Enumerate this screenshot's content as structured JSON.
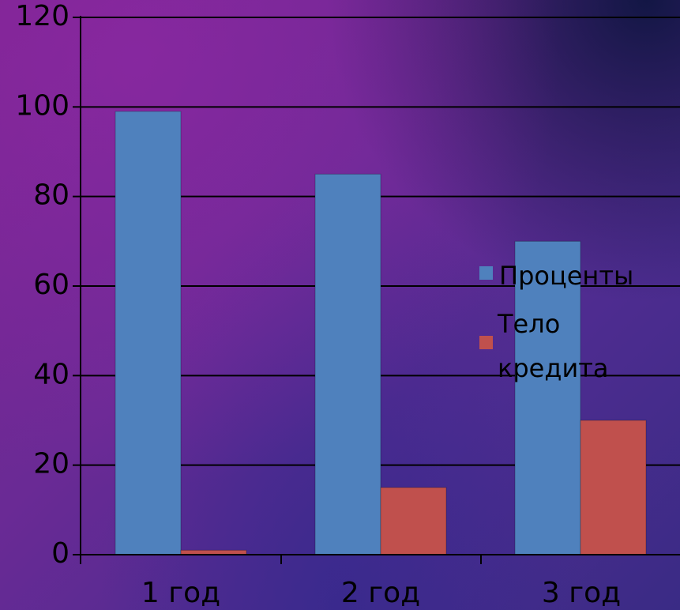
{
  "chart_data": {
    "type": "bar",
    "categories": [
      "1 год",
      "2 год",
      "3 год"
    ],
    "series": [
      {
        "name": "Проценты",
        "values": [
          99,
          85,
          70
        ],
        "color": "#4f81bd"
      },
      {
        "name": "Тело кредита",
        "values": [
          1,
          15,
          30
        ],
        "color": "#c0504d"
      }
    ],
    "y_ticks": [
      "0",
      "20",
      "40",
      "60",
      "80",
      "100",
      "120"
    ],
    "ylim": [
      0,
      120
    ],
    "grid": true,
    "legend_position": "right",
    "legend": [
      {
        "lines": [
          "Проценты"
        ],
        "color": "#4f81bd"
      },
      {
        "lines": [
          "Тело",
          "кредита"
        ],
        "color": "#c0504d"
      }
    ]
  }
}
